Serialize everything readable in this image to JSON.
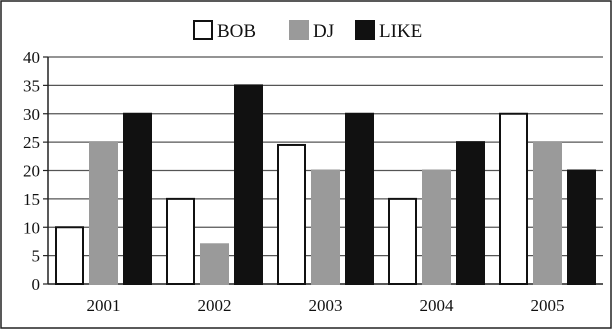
{
  "chart_data": {
    "type": "bar",
    "categories": [
      "2001",
      "2002",
      "2003",
      "2004",
      "2005"
    ],
    "series": [
      {
        "name": "BOB",
        "values": [
          10,
          15,
          24.5,
          15,
          30
        ],
        "fill": "#ffffff",
        "stroke": "#111111"
      },
      {
        "name": "DJ",
        "values": [
          25,
          7,
          20,
          20,
          25
        ],
        "fill": "#9a9a9a",
        "stroke": "#9a9a9a"
      },
      {
        "name": "LIKE",
        "values": [
          30,
          35,
          30,
          25,
          20
        ],
        "fill": "#111111",
        "stroke": "#111111"
      }
    ],
    "ylim": [
      0,
      40
    ],
    "yticks": [
      0,
      5,
      10,
      15,
      20,
      25,
      30,
      35,
      40
    ],
    "grid": true,
    "legend_position": "top-center",
    "title": "",
    "xlabel": "",
    "ylabel": ""
  }
}
